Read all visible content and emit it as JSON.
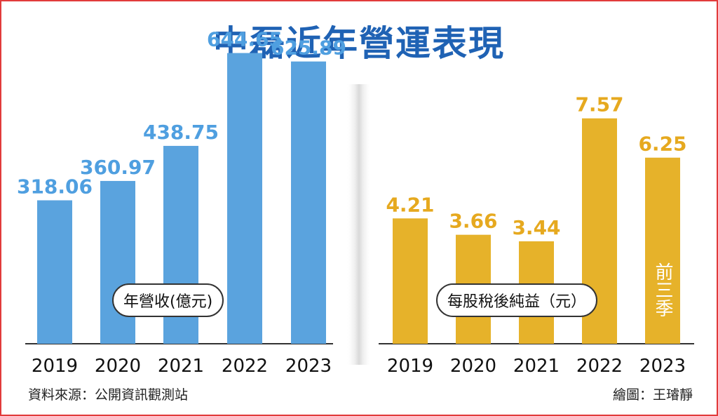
{
  "title": "中磊近年營運表現",
  "source": "資料來源：公開資訊觀測站",
  "credit": "繪圖：王璿靜",
  "chart_data": [
    {
      "type": "bar",
      "categories": [
        "2019",
        "2020",
        "2021",
        "2022",
        "2023"
      ],
      "values": [
        318.06,
        360.97,
        438.75,
        644.65,
        625.89
      ],
      "value_labels": [
        "318.06",
        "360.97",
        "438.75",
        "644.65",
        "625.89"
      ],
      "legend_label": "年營收(億元)",
      "color": "#5aa3de",
      "label_color": "#4f9fe0",
      "ylim": [
        0,
        700
      ]
    },
    {
      "type": "bar",
      "categories": [
        "2019",
        "2020",
        "2021",
        "2022",
        "2023"
      ],
      "values": [
        4.21,
        3.66,
        3.44,
        7.57,
        6.25
      ],
      "value_labels": [
        "4.21",
        "3.66",
        "3.44",
        "7.57",
        "6.25"
      ],
      "legend_label": "每股稅後純益（元）",
      "bar_note": "前三季",
      "color": "#e6b22a",
      "label_color": "#e6a91f",
      "ylim": [
        0,
        8.6
      ]
    }
  ]
}
